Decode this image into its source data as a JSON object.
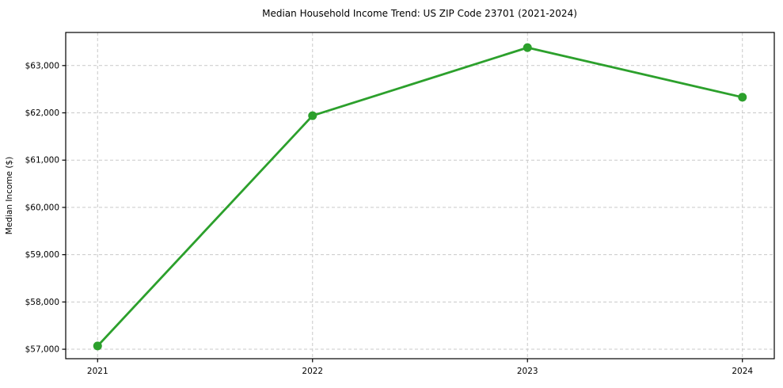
{
  "chart_data": {
    "type": "line",
    "title": "Median Household Income Trend: US ZIP Code 23701 (2021-2024)",
    "xlabel": "",
    "ylabel": "Median Income ($)",
    "categories": [
      "2021",
      "2022",
      "2023",
      "2024"
    ],
    "series": [
      {
        "name": "Median Household Income",
        "values": [
          57070,
          61940,
          63380,
          62330
        ],
        "color": "#2ca02c",
        "marker": "circle"
      }
    ],
    "ylim": [
      56800,
      63700
    ],
    "yticks": [
      57000,
      58000,
      59000,
      60000,
      61000,
      62000,
      63000
    ],
    "ytick_labels": [
      "$57,000",
      "$58,000",
      "$59,000",
      "$60,000",
      "$61,000",
      "$62,000",
      "$63,000"
    ],
    "grid": true,
    "grid_style": "dashed",
    "legend_position": "none",
    "colors": {
      "line": "#2ca02c",
      "grid": "#c9c9c9",
      "spine": "#000000",
      "text": "#000000",
      "background": "#ffffff"
    }
  }
}
